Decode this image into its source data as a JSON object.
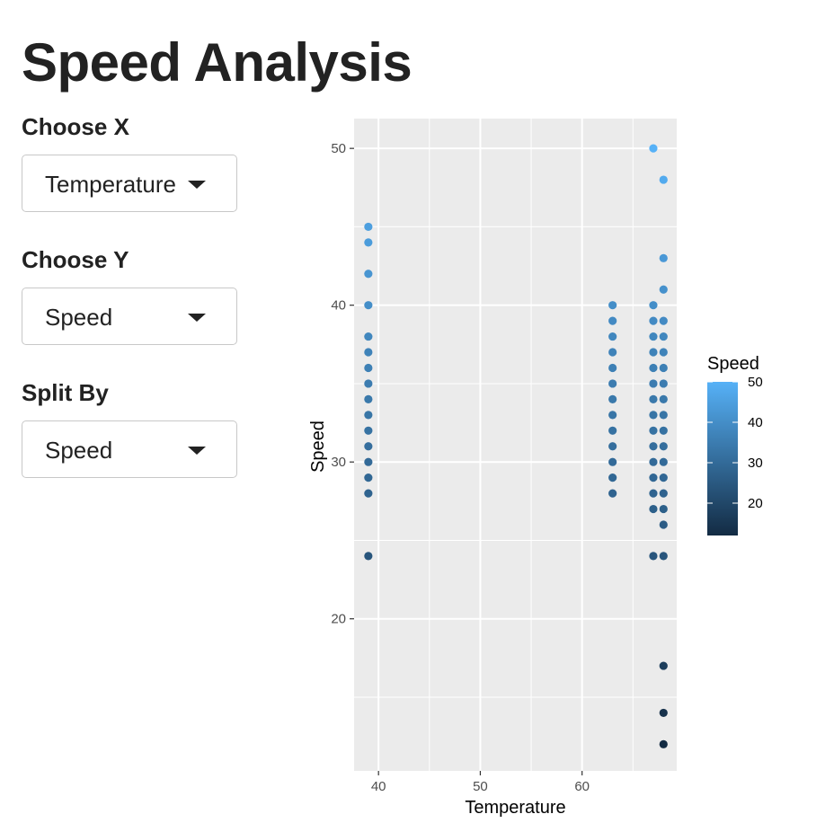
{
  "page": {
    "title": "Speed Analysis"
  },
  "controls": {
    "x": {
      "label": "Choose X",
      "value": "Temperature"
    },
    "y": {
      "label": "Choose Y",
      "value": "Speed"
    },
    "split": {
      "label": "Split By",
      "value": "Speed"
    }
  },
  "colors": {
    "panel_bg": "#EBEBEB",
    "grid": "#FFFFFF",
    "low": "#132B43",
    "high": "#56B1F7"
  },
  "chart_data": {
    "type": "scatter",
    "xlabel": "Temperature",
    "ylabel": "Speed",
    "xlim": [
      37.6,
      69.3
    ],
    "ylim": [
      10.3,
      51.9
    ],
    "x_ticks": [
      40,
      50,
      60
    ],
    "y_ticks": [
      20,
      30,
      40,
      50
    ],
    "grid": true,
    "legend": {
      "title": "Speed",
      "ticks": [
        20,
        30,
        40,
        50
      ],
      "range": [
        12,
        50
      ],
      "position": "right"
    },
    "points": [
      {
        "x": 39,
        "y": 45
      },
      {
        "x": 39,
        "y": 44
      },
      {
        "x": 39,
        "y": 42
      },
      {
        "x": 39,
        "y": 40
      },
      {
        "x": 39,
        "y": 38
      },
      {
        "x": 39,
        "y": 37
      },
      {
        "x": 39,
        "y": 36
      },
      {
        "x": 39,
        "y": 35
      },
      {
        "x": 39,
        "y": 34
      },
      {
        "x": 39,
        "y": 33
      },
      {
        "x": 39,
        "y": 32
      },
      {
        "x": 39,
        "y": 31
      },
      {
        "x": 39,
        "y": 30
      },
      {
        "x": 39,
        "y": 29
      },
      {
        "x": 39,
        "y": 28
      },
      {
        "x": 39,
        "y": 24
      },
      {
        "x": 63,
        "y": 40
      },
      {
        "x": 63,
        "y": 39
      },
      {
        "x": 63,
        "y": 38
      },
      {
        "x": 63,
        "y": 37
      },
      {
        "x": 63,
        "y": 36
      },
      {
        "x": 63,
        "y": 35
      },
      {
        "x": 63,
        "y": 34
      },
      {
        "x": 63,
        "y": 33
      },
      {
        "x": 63,
        "y": 32
      },
      {
        "x": 63,
        "y": 31
      },
      {
        "x": 63,
        "y": 30
      },
      {
        "x": 63,
        "y": 29
      },
      {
        "x": 63,
        "y": 28
      },
      {
        "x": 67,
        "y": 50
      },
      {
        "x": 67,
        "y": 40
      },
      {
        "x": 67,
        "y": 39
      },
      {
        "x": 67,
        "y": 38
      },
      {
        "x": 67,
        "y": 37
      },
      {
        "x": 67,
        "y": 36
      },
      {
        "x": 67,
        "y": 35
      },
      {
        "x": 67,
        "y": 34
      },
      {
        "x": 67,
        "y": 33
      },
      {
        "x": 67,
        "y": 32
      },
      {
        "x": 67,
        "y": 31
      },
      {
        "x": 67,
        "y": 30
      },
      {
        "x": 67,
        "y": 29
      },
      {
        "x": 67,
        "y": 28
      },
      {
        "x": 67,
        "y": 27
      },
      {
        "x": 67,
        "y": 24
      },
      {
        "x": 68,
        "y": 48
      },
      {
        "x": 68,
        "y": 43
      },
      {
        "x": 68,
        "y": 41
      },
      {
        "x": 68,
        "y": 39
      },
      {
        "x": 68,
        "y": 38
      },
      {
        "x": 68,
        "y": 37
      },
      {
        "x": 68,
        "y": 36
      },
      {
        "x": 68,
        "y": 35
      },
      {
        "x": 68,
        "y": 34
      },
      {
        "x": 68,
        "y": 33
      },
      {
        "x": 68,
        "y": 32
      },
      {
        "x": 68,
        "y": 31
      },
      {
        "x": 68,
        "y": 30
      },
      {
        "x": 68,
        "y": 29
      },
      {
        "x": 68,
        "y": 28
      },
      {
        "x": 68,
        "y": 27
      },
      {
        "x": 68,
        "y": 26
      },
      {
        "x": 68,
        "y": 24
      },
      {
        "x": 68,
        "y": 17
      },
      {
        "x": 68,
        "y": 14
      },
      {
        "x": 68,
        "y": 12
      }
    ]
  }
}
